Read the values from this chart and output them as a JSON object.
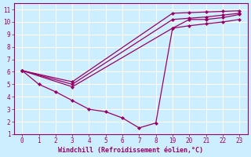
{
  "xlabel": "Windchill (Refroidissement éolien,°C)",
  "background_color": "#cceeff",
  "grid_color": "#ffffff",
  "line_color": "#990066",
  "xlim": [
    -0.5,
    13.5
  ],
  "ylim": [
    1,
    11.5
  ],
  "xtick_positions": [
    0,
    1,
    2,
    3,
    4,
    5,
    6,
    7,
    8,
    9,
    10,
    11,
    12,
    13
  ],
  "xtick_labels": [
    "0",
    "1",
    "2",
    "3",
    "4",
    "5",
    "6",
    "7",
    "8",
    "19",
    "20",
    "21",
    "22",
    "23"
  ],
  "ytick_positions": [
    1,
    2,
    3,
    4,
    5,
    6,
    7,
    8,
    9,
    10,
    11
  ],
  "ytick_labels": [
    "1",
    "2",
    "3",
    "4",
    "5",
    "6",
    "7",
    "8",
    "9",
    "10",
    "11"
  ],
  "lines": [
    {
      "xi": [
        0,
        1,
        2,
        3,
        4,
        5,
        6,
        7,
        8,
        9,
        10,
        11,
        12,
        13
      ],
      "y": [
        6.1,
        5.0,
        4.4,
        3.7,
        3.0,
        2.8,
        2.3,
        1.5,
        1.9,
        9.5,
        10.2,
        10.2,
        10.35,
        10.6
      ]
    },
    {
      "xi": [
        0,
        3,
        9,
        10,
        11,
        12,
        13
      ],
      "y": [
        6.1,
        5.2,
        10.7,
        10.75,
        10.8,
        10.85,
        10.9
      ]
    },
    {
      "xi": [
        0,
        3,
        9,
        10,
        11,
        12,
        13
      ],
      "y": [
        6.1,
        5.0,
        10.2,
        10.3,
        10.4,
        10.55,
        10.7
      ]
    },
    {
      "xi": [
        0,
        3,
        9,
        10,
        11,
        12,
        13
      ],
      "y": [
        6.1,
        4.8,
        9.5,
        9.7,
        9.85,
        10.0,
        10.2
      ]
    }
  ]
}
